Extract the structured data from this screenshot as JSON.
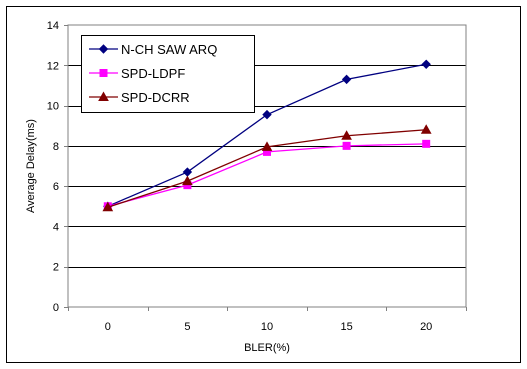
{
  "chart_data": {
    "type": "line",
    "xlabel": "BLER(%)",
    "ylabel": "Average Delay(ms)",
    "categories": [
      "0",
      "5",
      "10",
      "15",
      "20"
    ],
    "ylim": [
      0,
      14
    ],
    "yticks": [
      "0",
      "2",
      "4",
      "6",
      "8",
      "10",
      "12",
      "14"
    ],
    "grid": "horizontal",
    "legend_position": "top-left",
    "series": [
      {
        "name": "N-CH SAW ARQ",
        "color": "#000080",
        "marker": "diamond",
        "values": [
          5.0,
          6.7,
          9.55,
          11.3,
          12.05
        ]
      },
      {
        "name": "SPD-LDPF",
        "color": "#FF00FF",
        "marker": "square",
        "values": [
          5.0,
          6.05,
          7.7,
          8.0,
          8.1
        ]
      },
      {
        "name": "SPD-DCRR",
        "color": "#800000",
        "marker": "triangle",
        "values": [
          4.95,
          6.25,
          7.95,
          8.5,
          8.8
        ]
      }
    ]
  }
}
